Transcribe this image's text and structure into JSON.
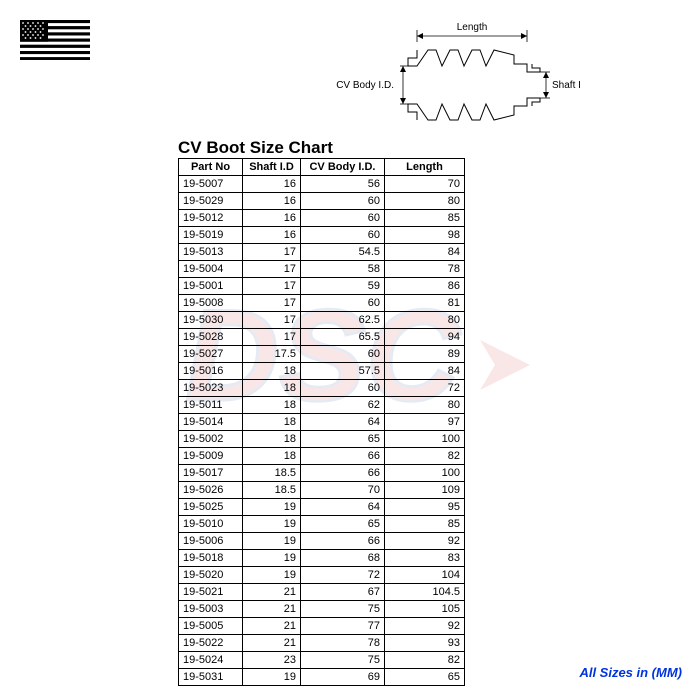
{
  "title": "CV Boot Size Chart",
  "footer": "All Sizes in (MM)",
  "diagram": {
    "length_label": "Length",
    "body_label": "CV Body I.D.",
    "shaft_label": "Shaft I.D."
  },
  "columns": [
    "Part No",
    "Shaft I.D",
    "CV Body I.D.",
    "Length"
  ],
  "rows": [
    [
      "19-5007",
      "16",
      "56",
      "70"
    ],
    [
      "19-5029",
      "16",
      "60",
      "80"
    ],
    [
      "19-5012",
      "16",
      "60",
      "85"
    ],
    [
      "19-5019",
      "16",
      "60",
      "98"
    ],
    [
      "19-5013",
      "17",
      "54.5",
      "84"
    ],
    [
      "19-5004",
      "17",
      "58",
      "78"
    ],
    [
      "19-5001",
      "17",
      "59",
      "86"
    ],
    [
      "19-5008",
      "17",
      "60",
      "81"
    ],
    [
      "19-5030",
      "17",
      "62.5",
      "80"
    ],
    [
      "19-5028",
      "17",
      "65.5",
      "94"
    ],
    [
      "19-5027",
      "17.5",
      "60",
      "89"
    ],
    [
      "19-5016",
      "18",
      "57.5",
      "84"
    ],
    [
      "19-5023",
      "18",
      "60",
      "72"
    ],
    [
      "19-5011",
      "18",
      "62",
      "80"
    ],
    [
      "19-5014",
      "18",
      "64",
      "97"
    ],
    [
      "19-5002",
      "18",
      "65",
      "100"
    ],
    [
      "19-5009",
      "18",
      "66",
      "82"
    ],
    [
      "19-5017",
      "18.5",
      "66",
      "100"
    ],
    [
      "19-5026",
      "18.5",
      "70",
      "109"
    ],
    [
      "19-5025",
      "19",
      "64",
      "95"
    ],
    [
      "19-5010",
      "19",
      "65",
      "85"
    ],
    [
      "19-5006",
      "19",
      "66",
      "92"
    ],
    [
      "19-5018",
      "19",
      "68",
      "83"
    ],
    [
      "19-5020",
      "19",
      "72",
      "104"
    ],
    [
      "19-5021",
      "21",
      "67",
      "104.5"
    ],
    [
      "19-5003",
      "21",
      "75",
      "105"
    ],
    [
      "19-5005",
      "21",
      "77",
      "92"
    ],
    [
      "19-5022",
      "21",
      "78",
      "93"
    ],
    [
      "19-5024",
      "23",
      "75",
      "82"
    ],
    [
      "19-5031",
      "19",
      "69",
      "65"
    ]
  ],
  "colors": {
    "text": "#000000",
    "footer": "#0033dd",
    "watermark_red": "#cc2222",
    "watermark_blue": "#1a3a8a",
    "flag_red": "#b22234",
    "flag_blue": "#3c3b6e"
  }
}
